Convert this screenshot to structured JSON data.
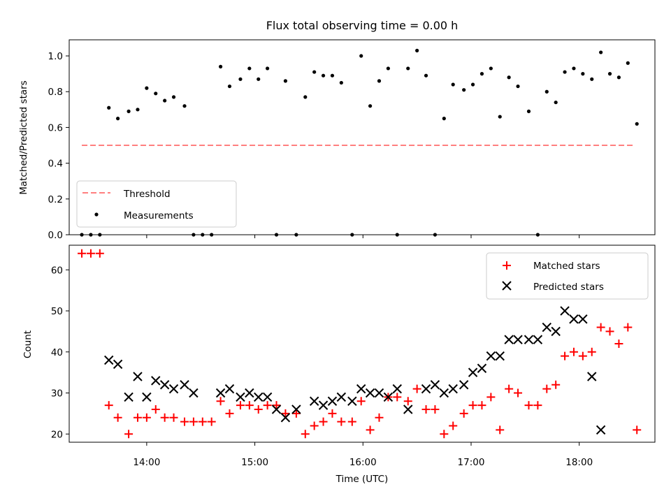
{
  "chart_data": [
    {
      "type": "scatter",
      "title": "Flux total observing time = 0.00 h",
      "xlabel": "",
      "ylabel": "Matched/Predicted stars",
      "xlim": [
        "13:17",
        "18:42"
      ],
      "ylim": [
        0,
        1.09
      ],
      "y_ticks": [
        "0.0",
        "0.2",
        "0.4",
        "0.6",
        "0.8",
        "1.0"
      ],
      "legend_position": "lower-left",
      "threshold": {
        "name": "Threshold",
        "x_start": "13:24",
        "x_end": "18:30",
        "value": 0.5,
        "color": "#ff7f7f",
        "style": "dashed"
      },
      "series": [
        {
          "name": "Measurements",
          "color": "#000000",
          "marker": "dot",
          "x": [
            "13:24",
            "13:29",
            "13:34",
            "13:39",
            "13:44",
            "13:50",
            "13:55",
            "14:00",
            "14:05",
            "14:10",
            "14:15",
            "14:21",
            "14:26",
            "14:31",
            "14:36",
            "14:41",
            "14:46",
            "14:52",
            "14:57",
            "15:02",
            "15:07",
            "15:12",
            "15:17",
            "15:23",
            "15:28",
            "15:33",
            "15:38",
            "15:43",
            "15:48",
            "15:54",
            "15:59",
            "16:04",
            "16:09",
            "16:14",
            "16:19",
            "16:25",
            "16:30",
            "16:35",
            "16:40",
            "16:45",
            "16:50",
            "16:56",
            "17:01",
            "17:06",
            "17:11",
            "17:16",
            "17:21",
            "17:26",
            "17:32",
            "17:37",
            "17:42",
            "17:47",
            "17:52",
            "17:57",
            "18:02",
            "18:07",
            "18:12",
            "18:17",
            "18:22",
            "18:27",
            "18:32"
          ],
          "y": [
            0.0,
            0.0,
            0.0,
            0.71,
            0.65,
            0.69,
            0.7,
            0.82,
            0.79,
            0.75,
            0.77,
            0.72,
            0.0,
            0.0,
            0.0,
            0.94,
            0.83,
            0.87,
            0.93,
            0.87,
            0.93,
            0.0,
            0.86,
            0.0,
            0.77,
            0.91,
            0.89,
            0.89,
            0.85,
            0.0,
            1.0,
            0.72,
            0.86,
            0.93,
            0.0,
            0.93,
            1.03,
            0.89,
            0.0,
            0.65,
            0.84,
            0.81,
            0.84,
            0.9,
            0.93,
            0.66,
            0.88,
            0.83,
            0.69,
            0.0,
            0.8,
            0.74,
            0.91,
            0.93,
            0.9,
            0.87,
            1.02,
            0.9,
            0.88,
            0.96,
            0.62
          ]
        }
      ]
    },
    {
      "type": "scatter",
      "title": "",
      "xlabel": "Time (UTC)",
      "ylabel": "Count",
      "xlim": [
        "13:17",
        "18:42"
      ],
      "ylim": [
        18,
        66
      ],
      "x_ticks": [
        "14:00",
        "15:00",
        "16:00",
        "17:00",
        "18:00"
      ],
      "y_ticks": [
        "20",
        "30",
        "40",
        "50",
        "60"
      ],
      "legend_position": "upper-right",
      "series": [
        {
          "name": "Matched stars",
          "color": "#ff0000",
          "marker": "plus",
          "x": [
            "13:24",
            "13:29",
            "13:34",
            "13:39",
            "13:44",
            "13:50",
            "13:55",
            "14:00",
            "14:05",
            "14:10",
            "14:15",
            "14:21",
            "14:26",
            "14:31",
            "14:36",
            "14:41",
            "14:46",
            "14:52",
            "14:57",
            "15:02",
            "15:07",
            "15:12",
            "15:17",
            "15:23",
            "15:28",
            "15:33",
            "15:38",
            "15:43",
            "15:48",
            "15:54",
            "15:59",
            "16:04",
            "16:09",
            "16:14",
            "16:19",
            "16:25",
            "16:30",
            "16:35",
            "16:40",
            "16:45",
            "16:50",
            "16:56",
            "17:01",
            "17:06",
            "17:11",
            "17:16",
            "17:21",
            "17:26",
            "17:32",
            "17:37",
            "17:42",
            "17:47",
            "17:52",
            "17:57",
            "18:02",
            "18:07",
            "18:12",
            "18:17",
            "18:22",
            "18:27",
            "18:32"
          ],
          "y": [
            64,
            64,
            64,
            27,
            24,
            20,
            24,
            24,
            26,
            24,
            24,
            23,
            23,
            23,
            23,
            28,
            25,
            27,
            27,
            26,
            27,
            27,
            25,
            25,
            20,
            22,
            23,
            25,
            23,
            23,
            28,
            21,
            24,
            29,
            29,
            28,
            31,
            26,
            26,
            20,
            22,
            25,
            27,
            27,
            29,
            21,
            31,
            30,
            27,
            27,
            31,
            32,
            39,
            40,
            39,
            40,
            46,
            45,
            42,
            46,
            21
          ]
        },
        {
          "name": "Predicted stars",
          "color": "#000000",
          "marker": "x",
          "x": [
            "13:39",
            "13:44",
            "13:50",
            "13:55",
            "14:00",
            "14:05",
            "14:10",
            "14:15",
            "14:21",
            "14:26",
            "14:41",
            "14:46",
            "14:52",
            "14:57",
            "15:02",
            "15:07",
            "15:12",
            "15:17",
            "15:23",
            "15:33",
            "15:38",
            "15:43",
            "15:48",
            "15:54",
            "15:59",
            "16:04",
            "16:09",
            "16:14",
            "16:19",
            "16:25",
            "16:35",
            "16:40",
            "16:45",
            "16:50",
            "16:56",
            "17:01",
            "17:06",
            "17:11",
            "17:16",
            "17:21",
            "17:26",
            "17:32",
            "17:37",
            "17:42",
            "17:47",
            "17:52",
            "17:57",
            "18:02",
            "18:07",
            "18:12",
            "18:17",
            "18:22",
            "18:27"
          ],
          "y": [
            38,
            37,
            29,
            34,
            29,
            33,
            32,
            31,
            32,
            30,
            30,
            31,
            29,
            30,
            29,
            29,
            26,
            24,
            26,
            28,
            27,
            28,
            29,
            28,
            31,
            30,
            30,
            29,
            31,
            26,
            31,
            32,
            30,
            31,
            32,
            35,
            36,
            39,
            39,
            43,
            43,
            43,
            43,
            46,
            45,
            50,
            48,
            48,
            34,
            21,
            null,
            null,
            null
          ]
        }
      ]
    }
  ]
}
